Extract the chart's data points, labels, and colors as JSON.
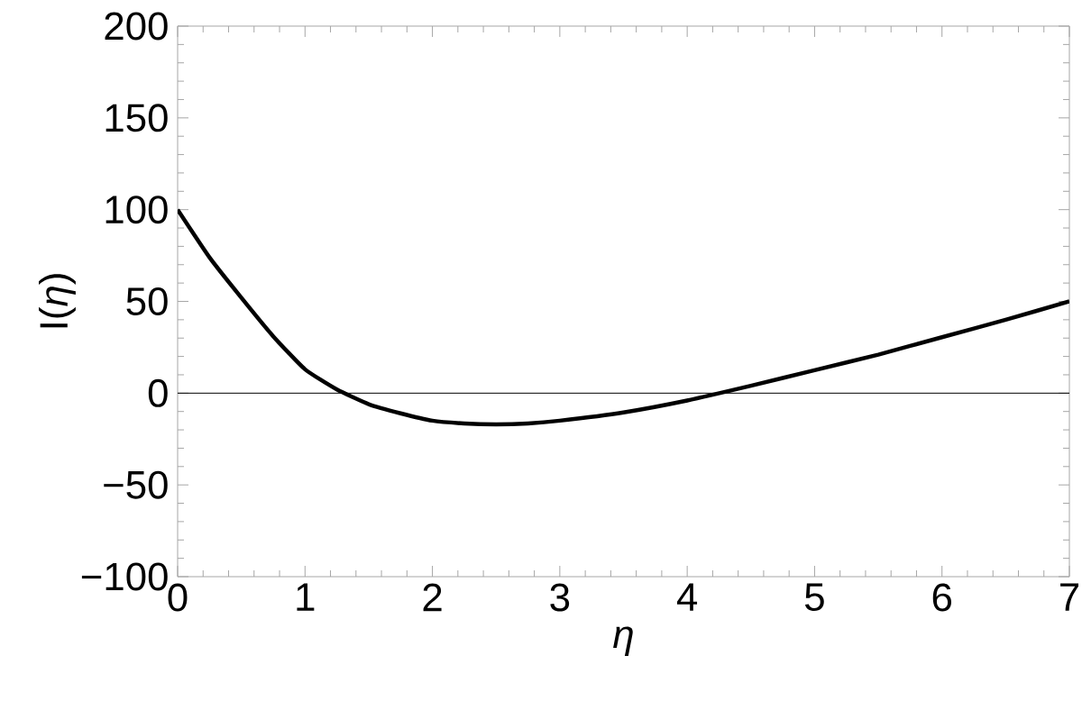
{
  "chart_data": {
    "type": "line",
    "xlabel": "η",
    "ylabel": "I(*η*)",
    "x": [
      0,
      0.25,
      0.5,
      0.75,
      1,
      1.25,
      1.5,
      1.75,
      2,
      2.25,
      2.5,
      2.75,
      3,
      3.5,
      4,
      4.5,
      5,
      5.5,
      6,
      6.5,
      7
    ],
    "series": [
      {
        "color": "#000000",
        "values": [
          100,
          74,
          52,
          31,
          13,
          2,
          -6,
          -11,
          -15,
          -16.5,
          -17,
          -16.5,
          -15,
          -10.5,
          -4,
          4,
          12.5,
          21,
          30.5,
          40,
          50
        ]
      }
    ],
    "xlim": [
      0,
      7
    ],
    "ylim": [
      -100,
      200
    ],
    "xticks": [
      0,
      1,
      2,
      3,
      4,
      5,
      6,
      7
    ],
    "yticks": [
      {
        "value": -100,
        "label": "−100"
      },
      {
        "value": -50,
        "label": "−50"
      },
      0,
      50,
      100,
      150,
      200
    ],
    "ref_lines": [
      {
        "axis": "y",
        "value": 0,
        "color": "#000000"
      }
    ],
    "grid": false,
    "marker": "none",
    "line_style": "solid"
  }
}
